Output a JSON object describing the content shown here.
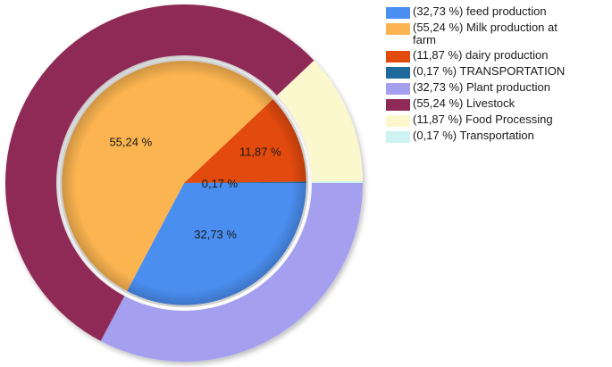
{
  "chart_data": {
    "type": "pie",
    "style": "doughnut-with-inner-pie",
    "title": "",
    "rings": [
      {
        "name": "",
        "level": "inner",
        "slices": [
          {
            "label": "feed production",
            "value": 32.73,
            "data_label": "32,73 %",
            "color": "#4a8ef0"
          },
          {
            "label": "Milk production at farm",
            "value": 55.24,
            "data_label": "55,24 %",
            "color": "#fbb450"
          },
          {
            "label": "dairy production",
            "value": 11.87,
            "data_label": "11,87 %",
            "color": "#e34a0e"
          },
          {
            "label": "TRANSPORTATION",
            "value": 0.17,
            "data_label": "0,17 %",
            "color": "#1e6a9c"
          }
        ]
      },
      {
        "name": "",
        "level": "outer",
        "slices": [
          {
            "label": "Plant production",
            "value": 32.73,
            "color": "#a4a0ef"
          },
          {
            "label": "Livestock",
            "value": 55.24,
            "color": "#8f2a57"
          },
          {
            "label": "Food Processing",
            "value": 11.87,
            "color": "#fbf8cd"
          },
          {
            "label": "Transportation",
            "value": 0.17,
            "color": "#cdf3f3"
          }
        ]
      }
    ],
    "start_angle": "3 o'clock, clockwise",
    "legend_position": "top-right"
  },
  "legend": {
    "items": [
      {
        "text": "(32,73 %) feed production",
        "color": "#4a8ef0"
      },
      {
        "text": "(55,24 %) Milk production at farm",
        "color": "#fbb450"
      },
      {
        "text": "(11,87 %) dairy production",
        "color": "#e34a0e"
      },
      {
        "text": "(0,17 %) TRANSPORTATION",
        "color": "#1e6a9c"
      },
      {
        "text": "(32,73 %) Plant production",
        "color": "#a4a0ef"
      },
      {
        "text": "(55,24 %) Livestock",
        "color": "#8f2a57"
      },
      {
        "text": "(11,87 %) Food Processing",
        "color": "#fbf8cd"
      },
      {
        "text": "(0,17 %) Transportation",
        "color": "#cdf3f3"
      }
    ]
  }
}
